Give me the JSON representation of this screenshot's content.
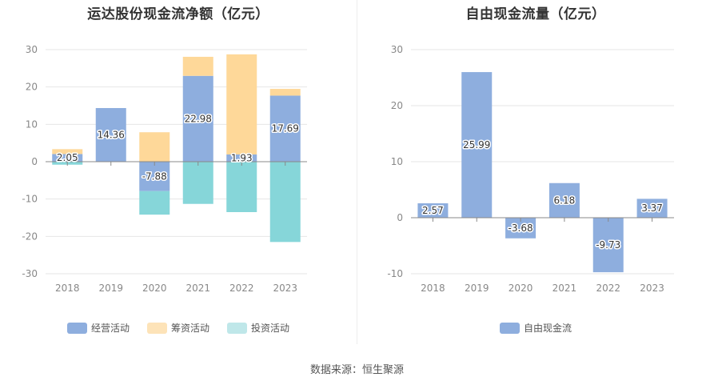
{
  "source_text": "数据来源：恒生聚源",
  "chart_data": [
    {
      "type": "bar",
      "stacked": true,
      "title": "运达股份现金流净额（亿元）",
      "categories": [
        "2018",
        "2019",
        "2020",
        "2021",
        "2022",
        "2023"
      ],
      "ylim": [
        -30,
        30
      ],
      "yticks": [
        30,
        20,
        10,
        0,
        -10,
        -20,
        -30
      ],
      "grid": true,
      "legend_position": "bottom",
      "series": [
        {
          "name": "经营活动",
          "color": "#8eaede",
          "values": [
            2.05,
            14.36,
            -7.88,
            22.98,
            1.93,
            17.69
          ],
          "labels": [
            "2.05",
            "14.36",
            "-7.88",
            "22.98",
            "1.93",
            "17.69"
          ]
        },
        {
          "name": "筹资活动",
          "color": "#fed899",
          "values": [
            1.3,
            0,
            7.88,
            5.1,
            26.8,
            1.8
          ]
        },
        {
          "name": "投资活动",
          "color": "#86d6d9",
          "values": [
            -0.8,
            0,
            -6.3,
            -11.3,
            -13.5,
            -21.5
          ]
        }
      ]
    },
    {
      "type": "bar",
      "title": "自由现金流量（亿元）",
      "categories": [
        "2018",
        "2019",
        "2020",
        "2021",
        "2022",
        "2023"
      ],
      "ylim": [
        -10,
        30
      ],
      "yticks": [
        30,
        20,
        10,
        0,
        -10
      ],
      "grid": true,
      "legend_position": "bottom",
      "series": [
        {
          "name": "自由现金流",
          "color": "#8eaede",
          "values": [
            2.57,
            25.99,
            -3.68,
            6.18,
            -9.73,
            3.37
          ],
          "labels": [
            "2.57",
            "25.99",
            "-3.68",
            "6.18",
            "-9.73",
            "3.37"
          ]
        }
      ]
    }
  ]
}
